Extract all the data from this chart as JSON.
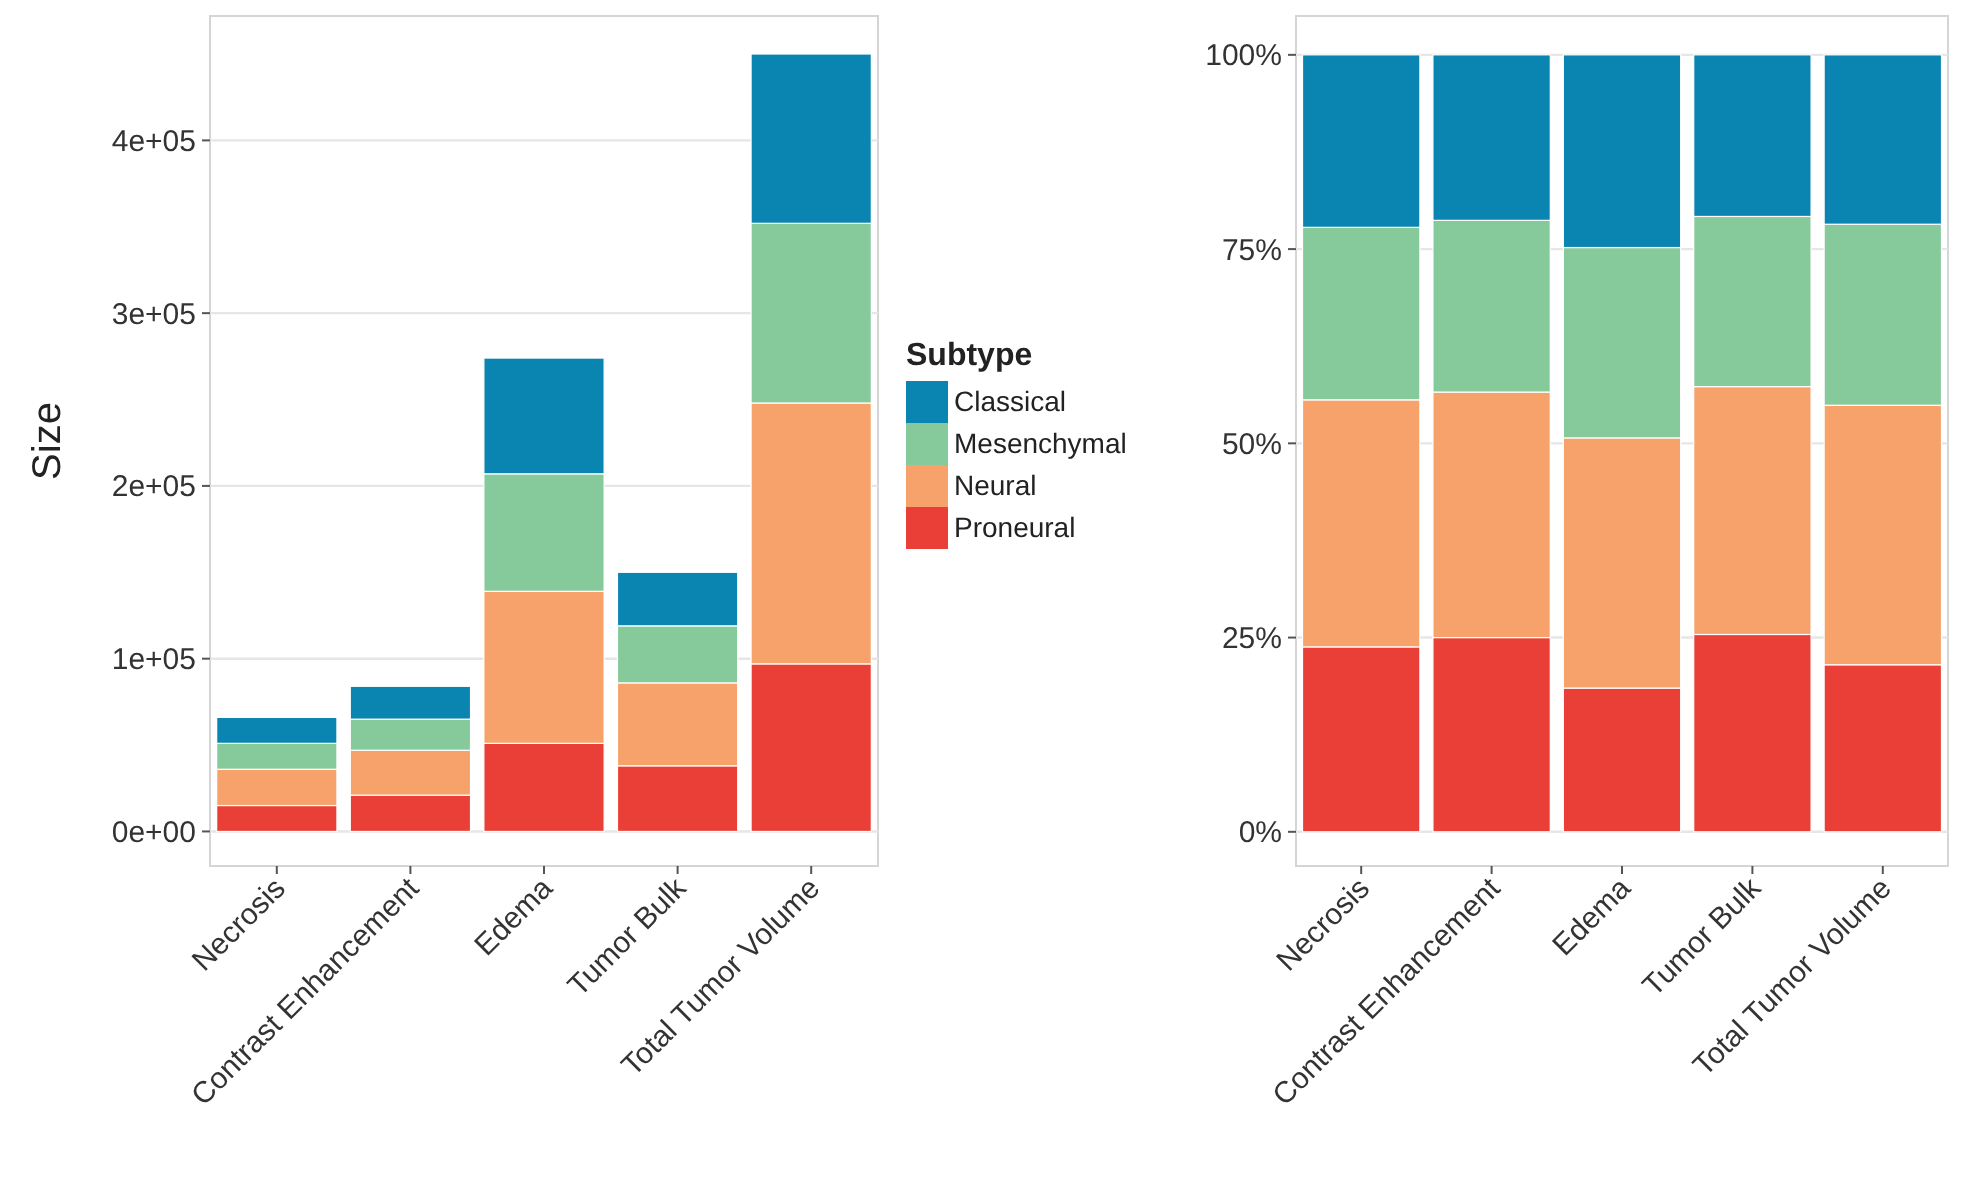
{
  "chart_data": [
    {
      "type": "bar",
      "stacked": true,
      "ylabel": "Size",
      "legend_title": "Subtype",
      "legend": "right",
      "grid": "y",
      "categories": [
        "Necrosis",
        "Contrast Enhancement",
        "Edema",
        "Tumor Bulk",
        "Total Tumor Volume"
      ],
      "ylim": [
        -20000,
        472000
      ],
      "yticks": [
        {
          "value": 0,
          "label": "0e+00"
        },
        {
          "value": 100000,
          "label": "1e+05"
        },
        {
          "value": 200000,
          "label": "2e+05"
        },
        {
          "value": 300000,
          "label": "3e+05"
        },
        {
          "value": 400000,
          "label": "4e+05"
        }
      ],
      "series": [
        {
          "name": "Proneural",
          "color": "#e93f36",
          "values": [
            15000,
            21000,
            51000,
            38000,
            97000
          ]
        },
        {
          "name": "Neural",
          "color": "#f6a26a",
          "values": [
            21000,
            26000,
            88000,
            48000,
            151000
          ]
        },
        {
          "name": "Mesenchymal",
          "color": "#86c99b",
          "values": [
            15000,
            18000,
            68000,
            33000,
            104000
          ]
        },
        {
          "name": "Classical",
          "color": "#0a84b0",
          "values": [
            15000,
            19000,
            67000,
            31000,
            98000
          ]
        }
      ]
    },
    {
      "type": "bar",
      "stacked": true,
      "grid": "y",
      "categories": [
        "Necrosis",
        "Contrast Enhancement",
        "Edema",
        "Tumor Bulk",
        "Total Tumor Volume"
      ],
      "ylim": [
        -4.4,
        105
      ],
      "yticks": [
        {
          "value": 0,
          "label": "0%"
        },
        {
          "value": 25,
          "label": "25%"
        },
        {
          "value": 50,
          "label": "50%"
        },
        {
          "value": 75,
          "label": "75%"
        },
        {
          "value": 100,
          "label": "100%"
        }
      ],
      "series": [
        {
          "color": "#e93f36",
          "values": [
            23.8,
            25.0,
            18.5,
            25.4,
            21.5
          ]
        },
        {
          "color": "#f6a26a",
          "values": [
            31.8,
            31.6,
            32.2,
            31.9,
            33.4
          ]
        },
        {
          "color": "#86c99b",
          "values": [
            22.2,
            22.1,
            24.5,
            21.9,
            23.3
          ]
        },
        {
          "color": "#0a84b0",
          "values": [
            22.2,
            21.3,
            24.8,
            20.8,
            21.8
          ]
        }
      ]
    }
  ]
}
